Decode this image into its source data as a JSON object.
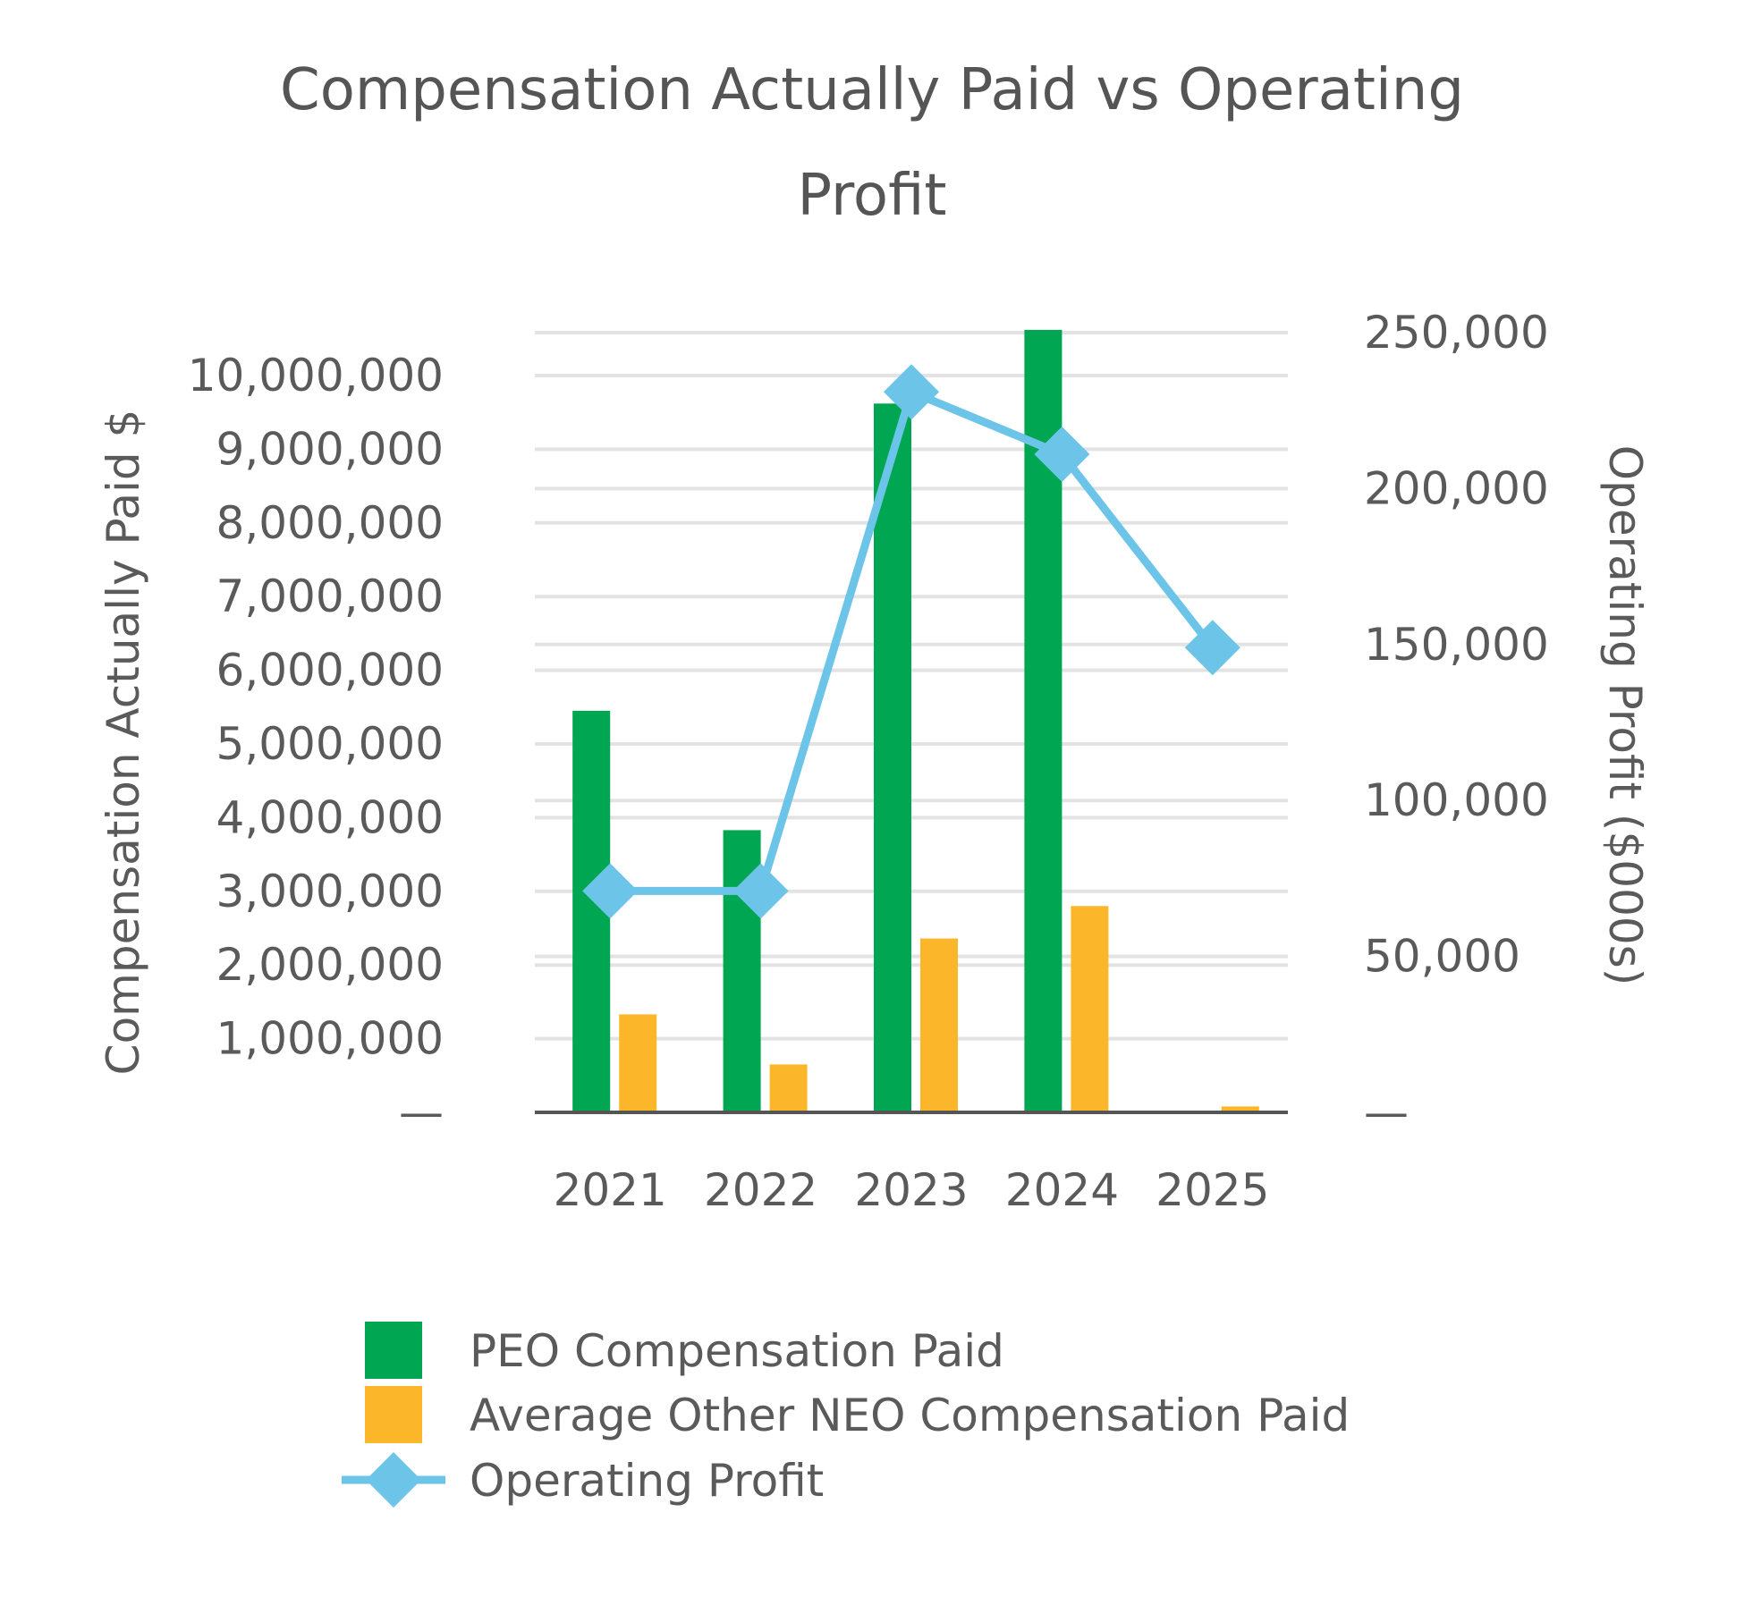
{
  "chart_data": {
    "type": "bar",
    "title": [
      "Compensation Actually Paid vs Operating",
      "Profit"
    ],
    "categories": [
      "2021",
      "2022",
      "2023",
      "2024",
      "2025"
    ],
    "series": [
      {
        "name": "PEO Compensation Paid",
        "type": "bar",
        "axis": "left",
        "color": "#00a651",
        "values": [
          5450000,
          3830000,
          9620000,
          10620000,
          0
        ]
      },
      {
        "name": "Average Other NEO Compensation Paid",
        "type": "bar",
        "axis": "left",
        "color": "#fbb62a",
        "values": [
          1330000,
          650000,
          2360000,
          2800000,
          80000
        ]
      },
      {
        "name": "Operating Profit",
        "type": "line",
        "marker": "diamond",
        "axis": "right",
        "color": "#6cc4e8",
        "values": [
          71000,
          71000,
          231000,
          211000,
          149000
        ]
      }
    ],
    "y_left": {
      "label": "Compensation Actually Paid $",
      "ylim": [
        0,
        10600000
      ],
      "ticks": [
        0,
        1000000,
        2000000,
        3000000,
        4000000,
        5000000,
        6000000,
        7000000,
        8000000,
        9000000,
        10000000
      ],
      "tick_labels": [
        "—",
        "1,000,000",
        "2,000,000",
        "3,000,000",
        "4,000,000",
        "5,000,000",
        "6,000,000",
        "7,000,000",
        "8,000,000",
        "9,000,000",
        "10,000,000"
      ]
    },
    "y_right": {
      "label": "Operating Profit ($000s)",
      "ylim": [
        0,
        255000
      ],
      "ticks": [
        0,
        50000,
        100000,
        150000,
        200000,
        250000
      ],
      "tick_labels": [
        "—",
        "50,000",
        "100,000",
        "150,000",
        "200,000",
        "250,000"
      ]
    },
    "grid": true,
    "legend_position": "bottom"
  }
}
